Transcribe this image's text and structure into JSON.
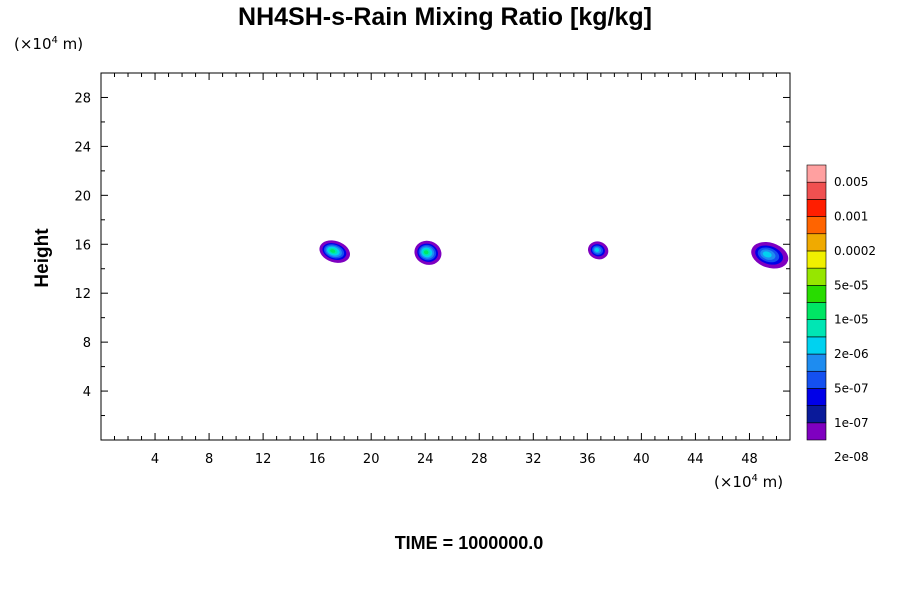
{
  "figure": {
    "title": "NH4SH-s-Rain Mixing Ratio [kg/kg]",
    "time_label": "TIME = 1000000.0"
  },
  "chart_data": {
    "type": "contour",
    "title": "NH4SH-s-Rain Mixing Ratio [kg/kg]",
    "xlabel": "",
    "ylabel": "Height",
    "x_unit": {
      "prefix": "(×10",
      "exp": "4",
      "suffix": " m)"
    },
    "y_unit": {
      "prefix": "(×10",
      "exp": "4",
      "suffix": " m)"
    },
    "xlim": [
      0,
      51
    ],
    "ylim": [
      0,
      30
    ],
    "xticks": [
      4,
      8,
      12,
      16,
      20,
      24,
      28,
      32,
      36,
      40,
      44,
      48
    ],
    "yticks": [
      4,
      8,
      12,
      16,
      20,
      24,
      28
    ],
    "grid": false,
    "colorbar": {
      "labels": [
        "0.005",
        "0.001",
        "0.0002",
        "5e-05",
        "1e-05",
        "2e-06",
        "5e-07",
        "1e-07",
        "2e-08"
      ],
      "colors": [
        "#7f00c0",
        "#0a1a9a",
        "#0000e8",
        "#1450f0",
        "#1e8cf0",
        "#00d2f0",
        "#00e6b4",
        "#00e664",
        "#28dc00",
        "#96e600",
        "#f0f000",
        "#f0aa00",
        "#ff6400",
        "#ff1e00",
        "#f05050",
        "#ffa0a0"
      ]
    },
    "features": [
      {
        "x": 17.3,
        "y": 15.4,
        "x_range": [
          16.3,
          18.4
        ],
        "y_range": [
          14.6,
          16.1
        ],
        "max_level": "5e-07"
      },
      {
        "x": 24.2,
        "y": 15.3,
        "x_range": [
          23.2,
          25.0
        ],
        "y_range": [
          14.5,
          16.2
        ],
        "max_level": "5e-07"
      },
      {
        "x": 36.8,
        "y": 15.5,
        "x_range": [
          36.2,
          37.5
        ],
        "y_range": [
          14.9,
          16.1
        ],
        "max_level": "1e-07"
      },
      {
        "x": 49.5,
        "y": 15.1,
        "x_range": [
          48.4,
          51.0
        ],
        "y_range": [
          14.3,
          16.1
        ],
        "max_level": "1e-07"
      }
    ]
  }
}
